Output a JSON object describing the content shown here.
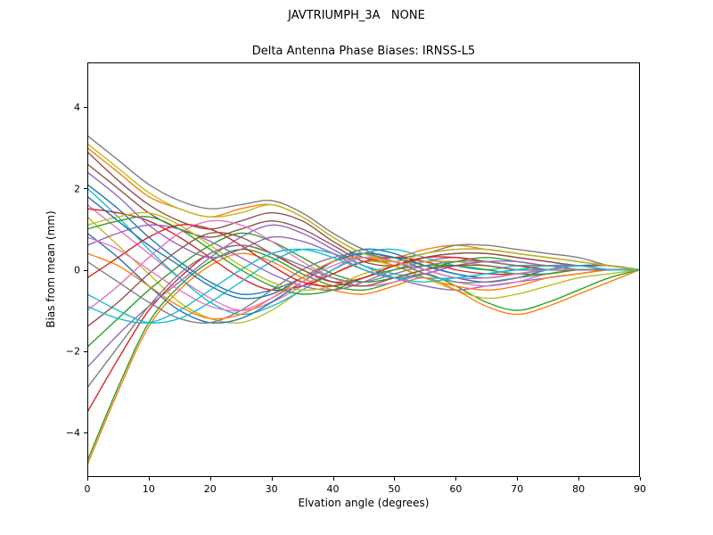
{
  "figure": {
    "suptitle": "JAVTRIUMPH_3A   NONE"
  },
  "chart_data": {
    "type": "line",
    "title": "Delta Antenna Phase Biases: IRNSS-L5",
    "xlabel": "Elvation angle (degrees)",
    "ylabel": "Bias from mean (mm)",
    "xlim": [
      0,
      90
    ],
    "ylim": [
      -5.1,
      5.1
    ],
    "xticks": [
      0,
      10,
      20,
      30,
      40,
      50,
      60,
      70,
      80,
      90
    ],
    "yticks": [
      -4,
      -2,
      0,
      2,
      4
    ],
    "grid": false,
    "legend": "none",
    "x": [
      0,
      5,
      10,
      15,
      20,
      25,
      30,
      35,
      40,
      45,
      50,
      55,
      60,
      65,
      70,
      75,
      80,
      85,
      90
    ],
    "series": [
      {
        "name": "line-01",
        "color": "#1f77b4",
        "values": [
          2.1,
          1.5,
          0.8,
          0.2,
          -0.3,
          -0.6,
          -0.5,
          -0.2,
          0.2,
          0.4,
          0.3,
          0.0,
          -0.2,
          -0.3,
          -0.2,
          0.0,
          0.1,
          0.1,
          0.0
        ]
      },
      {
        "name": "line-02",
        "color": "#ff7f0e",
        "values": [
          3.0,
          2.4,
          1.8,
          1.5,
          1.3,
          1.5,
          1.6,
          1.3,
          0.8,
          0.4,
          0.3,
          0.5,
          0.6,
          0.5,
          0.4,
          0.3,
          0.2,
          0.1,
          0.0
        ]
      },
      {
        "name": "line-03",
        "color": "#2ca02c",
        "values": [
          -4.7,
          -2.9,
          -1.3,
          -0.4,
          0.2,
          0.5,
          0.3,
          -0.1,
          -0.4,
          -0.5,
          -0.3,
          -0.1,
          -0.4,
          -0.8,
          -1.0,
          -0.8,
          -0.5,
          -0.2,
          0.0
        ]
      },
      {
        "name": "line-04",
        "color": "#d62728",
        "values": [
          -3.5,
          -2.2,
          -1.0,
          -0.2,
          0.4,
          0.6,
          0.4,
          0.0,
          -0.3,
          -0.2,
          0.1,
          0.3,
          0.4,
          0.4,
          0.3,
          0.2,
          0.1,
          0.1,
          0.0
        ]
      },
      {
        "name": "line-05",
        "color": "#9467bd",
        "values": [
          -2.4,
          -1.6,
          -0.9,
          -0.3,
          0.3,
          0.8,
          1.1,
          0.9,
          0.5,
          0.1,
          -0.2,
          -0.4,
          -0.5,
          -0.4,
          -0.3,
          -0.2,
          -0.1,
          0.0,
          0.0
        ]
      },
      {
        "name": "line-06",
        "color": "#8c564b",
        "values": [
          2.9,
          2.2,
          1.6,
          1.2,
          1.0,
          1.2,
          1.4,
          1.2,
          0.7,
          0.3,
          0.2,
          0.4,
          0.5,
          0.5,
          0.4,
          0.3,
          0.2,
          0.1,
          0.0
        ]
      },
      {
        "name": "line-07",
        "color": "#e377c2",
        "values": [
          1.6,
          1.0,
          0.4,
          -0.2,
          -0.7,
          -1.0,
          -0.8,
          -0.4,
          0.0,
          0.3,
          0.2,
          -0.1,
          -0.3,
          -0.4,
          -0.3,
          -0.1,
          0.0,
          0.0,
          0.0
        ]
      },
      {
        "name": "line-08",
        "color": "#7f7f7f",
        "values": [
          3.3,
          2.7,
          2.1,
          1.7,
          1.5,
          1.6,
          1.7,
          1.4,
          0.9,
          0.5,
          0.3,
          0.4,
          0.6,
          0.6,
          0.5,
          0.4,
          0.3,
          0.1,
          0.0
        ]
      },
      {
        "name": "line-09",
        "color": "#bcbd22",
        "values": [
          1.3,
          0.6,
          -0.1,
          -0.8,
          -1.2,
          -1.3,
          -1.0,
          -0.5,
          -0.1,
          0.2,
          0.1,
          -0.2,
          -0.5,
          -0.7,
          -0.6,
          -0.4,
          -0.2,
          -0.1,
          0.0
        ]
      },
      {
        "name": "line-10",
        "color": "#17becf",
        "values": [
          2.0,
          1.3,
          0.5,
          -0.2,
          -0.8,
          -1.1,
          -0.9,
          -0.5,
          0.0,
          0.4,
          0.5,
          0.3,
          0.1,
          0.0,
          0.1,
          0.1,
          0.1,
          0.0,
          0.0
        ]
      },
      {
        "name": "line-11",
        "color": "#1f77b4",
        "values": [
          0.9,
          0.3,
          -0.4,
          -1.0,
          -1.3,
          -1.2,
          -0.8,
          -0.3,
          0.2,
          0.5,
          0.4,
          0.1,
          -0.1,
          -0.2,
          -0.1,
          0.0,
          0.1,
          0.0,
          0.0
        ]
      },
      {
        "name": "line-12",
        "color": "#ff7f0e",
        "values": [
          -4.8,
          -3.0,
          -1.4,
          -0.5,
          0.1,
          0.4,
          0.2,
          -0.2,
          -0.5,
          -0.6,
          -0.4,
          -0.2,
          -0.5,
          -0.9,
          -1.1,
          -0.9,
          -0.6,
          -0.3,
          0.0
        ]
      },
      {
        "name": "line-13",
        "color": "#2ca02c",
        "values": [
          -1.9,
          -1.2,
          -0.5,
          0.1,
          0.6,
          0.9,
          0.7,
          0.3,
          -0.1,
          -0.3,
          -0.2,
          0.0,
          0.2,
          0.3,
          0.2,
          0.1,
          0.1,
          0.0,
          0.0
        ]
      },
      {
        "name": "line-14",
        "color": "#d62728",
        "values": [
          1.5,
          1.4,
          1.2,
          0.8,
          0.3,
          -0.2,
          -0.5,
          -0.4,
          -0.1,
          0.2,
          0.3,
          0.2,
          0.0,
          -0.1,
          -0.1,
          0.0,
          0.0,
          0.0,
          0.0
        ]
      },
      {
        "name": "line-15",
        "color": "#9467bd",
        "values": [
          0.6,
          0.9,
          1.1,
          1.0,
          0.7,
          0.3,
          -0.1,
          -0.4,
          -0.5,
          -0.3,
          0.0,
          0.2,
          0.3,
          0.2,
          0.1,
          0.0,
          0.0,
          0.0,
          0.0
        ]
      },
      {
        "name": "line-16",
        "color": "#8c564b",
        "values": [
          2.6,
          2.0,
          1.4,
          1.0,
          0.8,
          1.0,
          1.2,
          1.0,
          0.6,
          0.2,
          0.1,
          0.3,
          0.4,
          0.4,
          0.3,
          0.2,
          0.1,
          0.1,
          0.0
        ]
      },
      {
        "name": "line-17",
        "color": "#e377c2",
        "values": [
          -1.0,
          -0.4,
          0.3,
          0.9,
          1.2,
          1.1,
          0.7,
          0.2,
          -0.2,
          -0.4,
          -0.3,
          -0.1,
          0.1,
          0.2,
          0.1,
          0.1,
          0.0,
          0.0,
          0.0
        ]
      },
      {
        "name": "line-18",
        "color": "#7f7f7f",
        "values": [
          0.2,
          -0.3,
          -0.8,
          -1.2,
          -1.3,
          -1.0,
          -0.5,
          0.0,
          0.3,
          0.4,
          0.2,
          -0.1,
          -0.3,
          -0.3,
          -0.2,
          -0.1,
          0.0,
          0.0,
          0.0
        ]
      },
      {
        "name": "line-19",
        "color": "#bcbd22",
        "values": [
          1.1,
          1.3,
          1.4,
          1.1,
          0.6,
          0.1,
          -0.3,
          -0.5,
          -0.4,
          -0.1,
          0.1,
          0.2,
          0.2,
          0.1,
          0.0,
          0.0,
          0.0,
          0.0,
          0.0
        ]
      },
      {
        "name": "line-20",
        "color": "#17becf",
        "values": [
          -0.6,
          -1.0,
          -1.3,
          -1.2,
          -0.8,
          -0.3,
          0.2,
          0.5,
          0.4,
          0.1,
          -0.1,
          -0.2,
          -0.2,
          -0.1,
          0.0,
          0.1,
          0.1,
          0.0,
          0.0
        ]
      },
      {
        "name": "line-21",
        "color": "#1f77b4",
        "values": [
          1.8,
          1.2,
          0.6,
          0.1,
          -0.4,
          -0.7,
          -0.6,
          -0.2,
          0.2,
          0.4,
          0.3,
          0.1,
          -0.1,
          -0.2,
          -0.1,
          0.0,
          0.0,
          0.0,
          0.0
        ]
      },
      {
        "name": "line-22",
        "color": "#ff7f0e",
        "values": [
          0.4,
          0.1,
          -0.4,
          -0.9,
          -1.2,
          -1.1,
          -0.7,
          -0.2,
          0.2,
          0.3,
          0.1,
          -0.2,
          -0.4,
          -0.5,
          -0.4,
          -0.2,
          -0.1,
          0.0,
          0.0
        ]
      },
      {
        "name": "line-23",
        "color": "#2ca02c",
        "values": [
          1.0,
          1.2,
          1.3,
          1.0,
          0.5,
          0.0,
          -0.4,
          -0.6,
          -0.5,
          -0.2,
          0.0,
          0.1,
          0.1,
          0.0,
          -0.1,
          -0.1,
          0.0,
          0.0,
          0.0
        ]
      },
      {
        "name": "line-24",
        "color": "#d62728",
        "values": [
          -0.2,
          0.3,
          0.8,
          1.1,
          1.0,
          0.6,
          0.1,
          -0.3,
          -0.4,
          -0.2,
          0.1,
          0.3,
          0.3,
          0.2,
          0.1,
          0.0,
          0.0,
          0.0,
          0.0
        ]
      },
      {
        "name": "line-25",
        "color": "#9467bd",
        "values": [
          2.4,
          1.8,
          1.1,
          0.6,
          0.3,
          0.5,
          0.8,
          0.7,
          0.4,
          0.0,
          -0.2,
          -0.1,
          0.1,
          0.2,
          0.2,
          0.1,
          0.1,
          0.0,
          0.0
        ]
      },
      {
        "name": "line-26",
        "color": "#8c564b",
        "values": [
          -1.4,
          -0.8,
          -0.1,
          0.5,
          0.9,
          0.8,
          0.4,
          0.0,
          -0.3,
          -0.4,
          -0.2,
          0.0,
          0.1,
          0.1,
          0.0,
          0.0,
          0.0,
          0.0,
          0.0
        ]
      },
      {
        "name": "line-27",
        "color": "#e377c2",
        "values": [
          0.8,
          0.5,
          0.0,
          -0.5,
          -0.9,
          -1.0,
          -0.7,
          -0.3,
          0.1,
          0.3,
          0.2,
          0.0,
          -0.2,
          -0.2,
          -0.1,
          0.0,
          0.0,
          0.0,
          0.0
        ]
      },
      {
        "name": "line-28",
        "color": "#7f7f7f",
        "values": [
          -2.9,
          -1.9,
          -0.9,
          -0.1,
          0.4,
          0.6,
          0.4,
          0.1,
          -0.2,
          -0.3,
          -0.1,
          0.1,
          0.2,
          0.2,
          0.1,
          0.1,
          0.0,
          0.0,
          0.0
        ]
      },
      {
        "name": "line-29",
        "color": "#bcbd22",
        "values": [
          3.1,
          2.5,
          1.9,
          1.5,
          1.3,
          1.4,
          1.6,
          1.3,
          0.8,
          0.4,
          0.2,
          0.4,
          0.5,
          0.5,
          0.4,
          0.3,
          0.2,
          0.1,
          0.0
        ]
      },
      {
        "name": "line-30",
        "color": "#17becf",
        "values": [
          -0.9,
          -1.2,
          -1.3,
          -1.0,
          -0.5,
          0.0,
          0.4,
          0.5,
          0.3,
          0.0,
          -0.2,
          -0.3,
          -0.2,
          -0.1,
          0.0,
          0.0,
          0.1,
          0.0,
          0.0
        ]
      }
    ]
  }
}
